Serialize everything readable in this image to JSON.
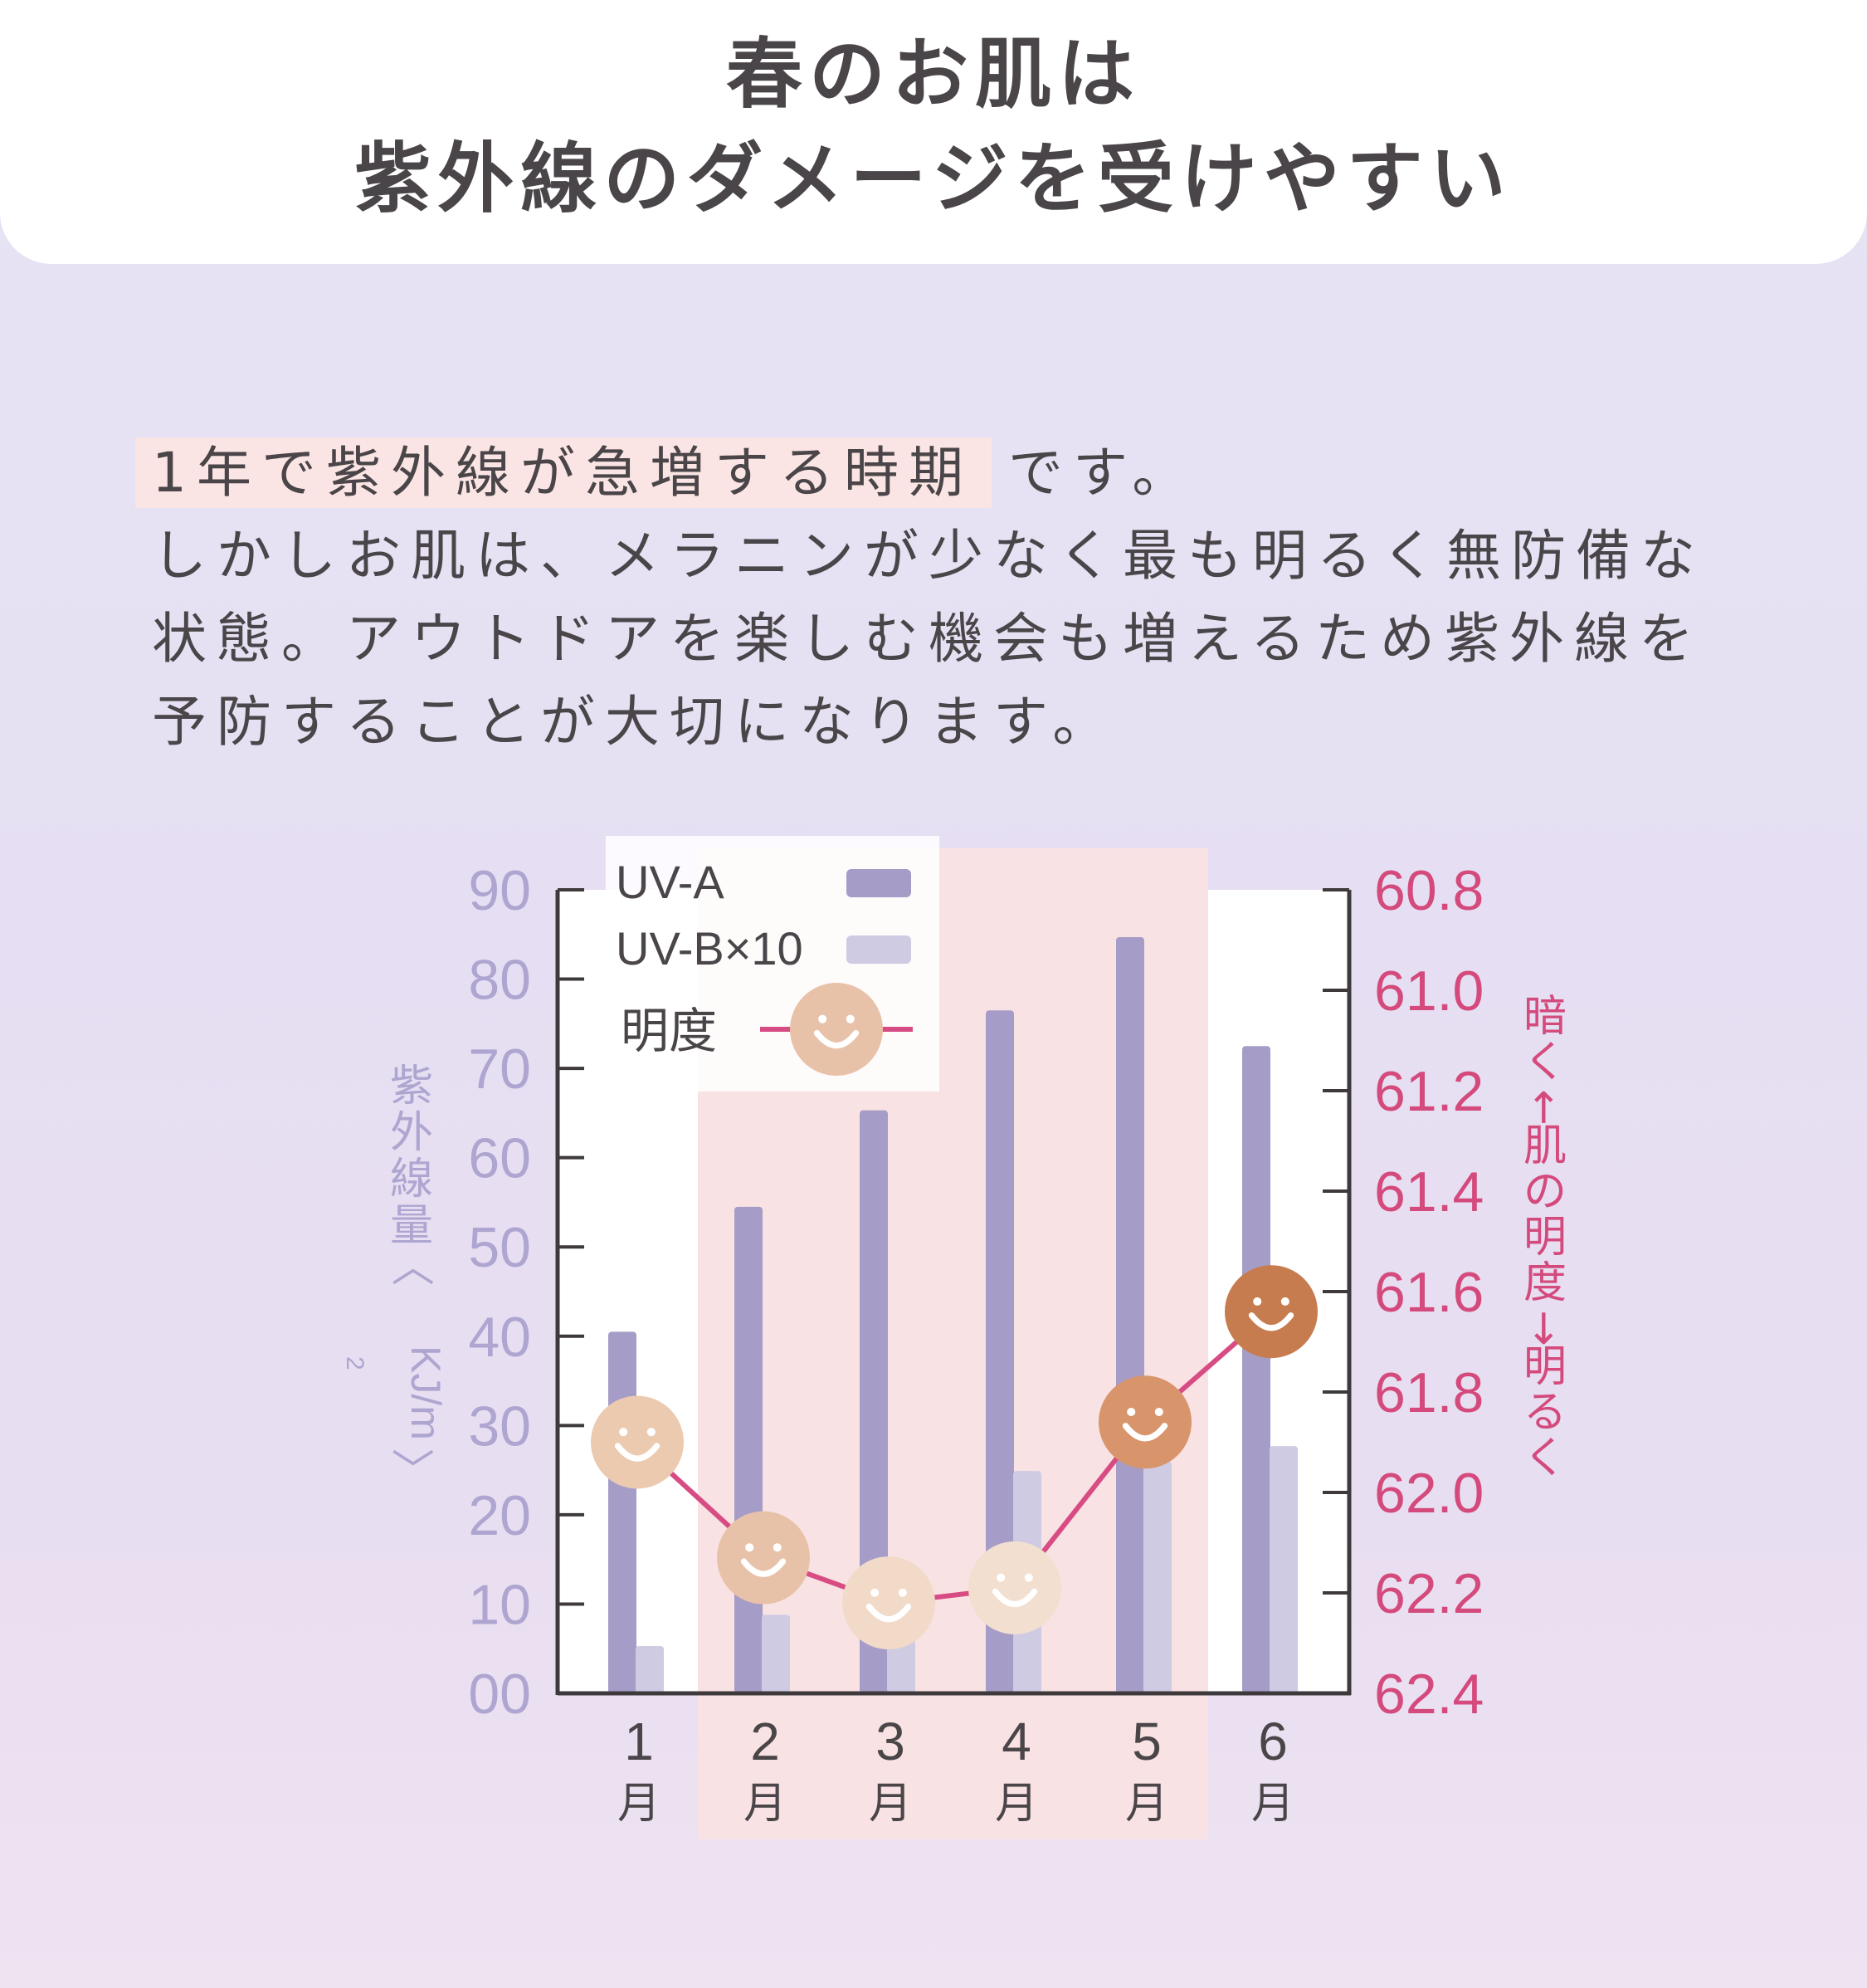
{
  "title": {
    "line1": "春のお肌は",
    "line2": "紫外線のダメージを受けやすい"
  },
  "intro": {
    "highlight": "1年で紫外線が急増する時期",
    "after_highlight": "です。",
    "line2": "しかしお肌は、メラニンが少なく最も明るく無防備な",
    "line3": "状態。アウトドアを楽しむ機会も増えるため紫外線を",
    "line4": "予防することが大切になります。"
  },
  "colors": {
    "uva": "#a59dc8",
    "uvb": "#cfcbe3",
    "line": "#d84c84",
    "right_axis": "#d44a7c",
    "left_axis": "#aea6d0",
    "highlight_band": "#f9e2e3",
    "plot_bg": "#ffffff"
  },
  "chart_data": {
    "type": "bar",
    "categories": [
      "1",
      "2",
      "3",
      "4",
      "5",
      "6"
    ],
    "category_unit": "月",
    "series": [
      {
        "name": "UV-A",
        "type": "bar",
        "axis": "left",
        "values": [
          40.5,
          54.5,
          65.3,
          76.5,
          84.7,
          72.5
        ]
      },
      {
        "name": "UV-B×10",
        "type": "bar",
        "axis": "left",
        "values": [
          5.3,
          8.8,
          11,
          24.9,
          26,
          27.7
        ]
      },
      {
        "name": "明度",
        "type": "line",
        "axis": "right",
        "marker": "smiley-icon",
        "values": [
          61.9,
          62.13,
          62.22,
          62.19,
          61.86,
          61.64
        ],
        "marker_colors": [
          "#eccab0",
          "#e8c2a8",
          "#f2dac9",
          "#f3dfd0",
          "#d8956c",
          "#c67c4f"
        ]
      }
    ],
    "left_axis": {
      "label": "紫外線量〈KJ/m²〉",
      "label_parts": [
        "紫",
        "外",
        "線",
        "量",
        "〈",
        "KJ/m",
        "2",
        "〉"
      ],
      "ylim": [
        0,
        90
      ],
      "ticks": [
        0,
        10,
        20,
        30,
        40,
        50,
        60,
        70,
        80,
        90
      ],
      "tick_labels": [
        "00",
        "10",
        "20",
        "30",
        "40",
        "50",
        "60",
        "70",
        "80",
        "90"
      ]
    },
    "right_axis": {
      "label": "暗く←肌の明度→明るく",
      "label_chars": [
        "暗",
        "く",
        "←",
        "肌",
        "の",
        "明",
        "度",
        "→",
        "明",
        "る",
        "く"
      ],
      "ylim": [
        62.4,
        60.8
      ],
      "inverted": true,
      "ticks": [
        60.8,
        61.0,
        61.2,
        61.4,
        61.6,
        61.8,
        62.0,
        62.2,
        62.4
      ],
      "tick_labels": [
        "60.8",
        "61.0",
        "61.2",
        "61.4",
        "61.6",
        "61.8",
        "62.0",
        "62.2",
        "62.4"
      ]
    },
    "highlight_months": [
      "2",
      "3",
      "4",
      "5"
    ],
    "legend": {
      "position": "top-left",
      "entries": [
        "UV-A",
        "UV-B×10",
        "明度"
      ]
    },
    "grid": false
  }
}
